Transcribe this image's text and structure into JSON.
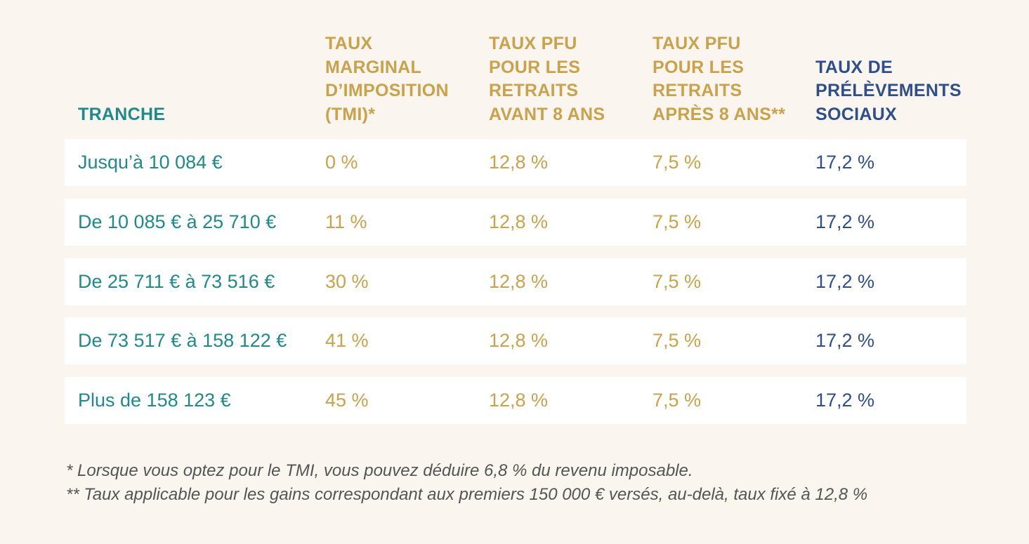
{
  "colors": {
    "background": "#faf5ef",
    "row_background": "#ffffff",
    "teal": "#1e8b8a",
    "gold": "#c9a24a",
    "navy": "#2f4f8a",
    "footnote": "#555555"
  },
  "headers": {
    "tranche": [
      "TRANCHE"
    ],
    "tmi": [
      "TAUX",
      "MARGINAL",
      "D’IMPOSITION",
      "(TMI)*"
    ],
    "pfu_avant": [
      "TAUX PFU",
      "POUR LES",
      "RETRAITS",
      "AVANT 8 ANS"
    ],
    "pfu_apres": [
      "TAUX PFU",
      "POUR LES",
      "RETRAITS",
      "APRÈS 8 ANS**"
    ],
    "prelevements": [
      "TAUX DE",
      "PRÉLÈVEMENTS",
      "SOCIAUX"
    ]
  },
  "rows": [
    {
      "tranche": "Jusqu’à 10 084 €",
      "tmi": "0 %",
      "pfu_avant": "12,8 %",
      "pfu_apres": "7,5 %",
      "prelevements": "17,2 %"
    },
    {
      "tranche": "De 10 085 € à 25 710 €",
      "tmi": "11 %",
      "pfu_avant": "12,8 %",
      "pfu_apres": "7,5 %",
      "prelevements": "17,2 %"
    },
    {
      "tranche": "De 25 711 € à 73 516 €",
      "tmi": "30 %",
      "pfu_avant": "12,8 %",
      "pfu_apres": "7,5 %",
      "prelevements": "17,2 %"
    },
    {
      "tranche": "De 73 517 € à 158 122 €",
      "tmi": "41 %",
      "pfu_avant": "12,8 %",
      "pfu_apres": "7,5 %",
      "prelevements": "17,2 %"
    },
    {
      "tranche": "Plus de 158 123 €",
      "tmi": "45 %",
      "pfu_avant": "12,8 %",
      "pfu_apres": "7,5 %",
      "prelevements": "17,2 %"
    }
  ],
  "footnotes": [
    "* Lorsque vous optez pour le TMI, vous pouvez déduire 6,8 % du revenu imposable.",
    "** Taux applicable pour les gains correspondant aux premiers 150 000 € versés, au-delà, taux fixé à 12,8 %"
  ]
}
